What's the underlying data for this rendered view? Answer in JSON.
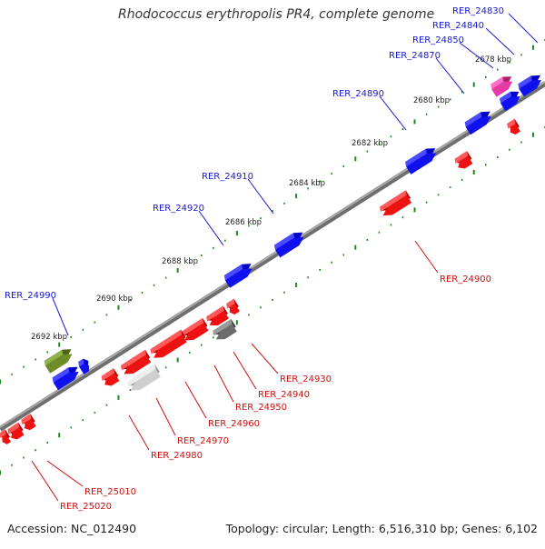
{
  "title": "Rhodococcus erythropolis PR4, complete genome",
  "footer": {
    "accession": "Accession: NC_012490",
    "stats": "Topology: circular; Length: 6,516,310 bp; Genes: 6,102"
  },
  "colors": {
    "forward_gene": "#0a0ae6",
    "reverse_gene": "#f00f0f",
    "backbone": "#888888",
    "tick": "#1a8a1a",
    "forward_label": "#1a1acc",
    "reverse_label": "#cc1111"
  },
  "scale": [
    {
      "label": "2678 kbp"
    },
    {
      "label": "2680 kbp"
    },
    {
      "label": "2682 kbp"
    },
    {
      "label": "2684 kbp"
    },
    {
      "label": "2686 kbp"
    },
    {
      "label": "2688 kbp"
    },
    {
      "label": "2690 kbp"
    },
    {
      "label": "2692 kbp"
    }
  ],
  "genes": [
    {
      "id": "RER_24830",
      "strand": "forward",
      "color": "blue"
    },
    {
      "id": "RER_24840",
      "strand": "forward",
      "color": "blue"
    },
    {
      "id": "RER_24850",
      "strand": "forward",
      "color": "pink"
    },
    {
      "id": "RER_24870",
      "strand": "forward",
      "color": "blue"
    },
    {
      "id": "RER_24890",
      "strand": "forward",
      "color": "blue"
    },
    {
      "id": "RER_24900",
      "strand": "reverse",
      "color": "red"
    },
    {
      "id": "RER_24910",
      "strand": "forward",
      "color": "blue"
    },
    {
      "id": "RER_24920",
      "strand": "forward",
      "color": "blue"
    },
    {
      "id": "RER_24930",
      "strand": "reverse",
      "color": "darkgray"
    },
    {
      "id": "RER_24940",
      "strand": "reverse",
      "color": "red"
    },
    {
      "id": "RER_24950",
      "strand": "reverse",
      "color": "red"
    },
    {
      "id": "RER_24960",
      "strand": "reverse",
      "color": "red"
    },
    {
      "id": "RER_24970",
      "strand": "reverse",
      "color": "lightgray"
    },
    {
      "id": "RER_24980",
      "strand": "reverse",
      "color": "red"
    },
    {
      "id": "RER_24990",
      "strand": "forward",
      "color": "blue"
    },
    {
      "id": "RER_25010",
      "strand": "reverse",
      "color": "red"
    },
    {
      "id": "RER_25020",
      "strand": "reverse",
      "color": "red"
    }
  ]
}
